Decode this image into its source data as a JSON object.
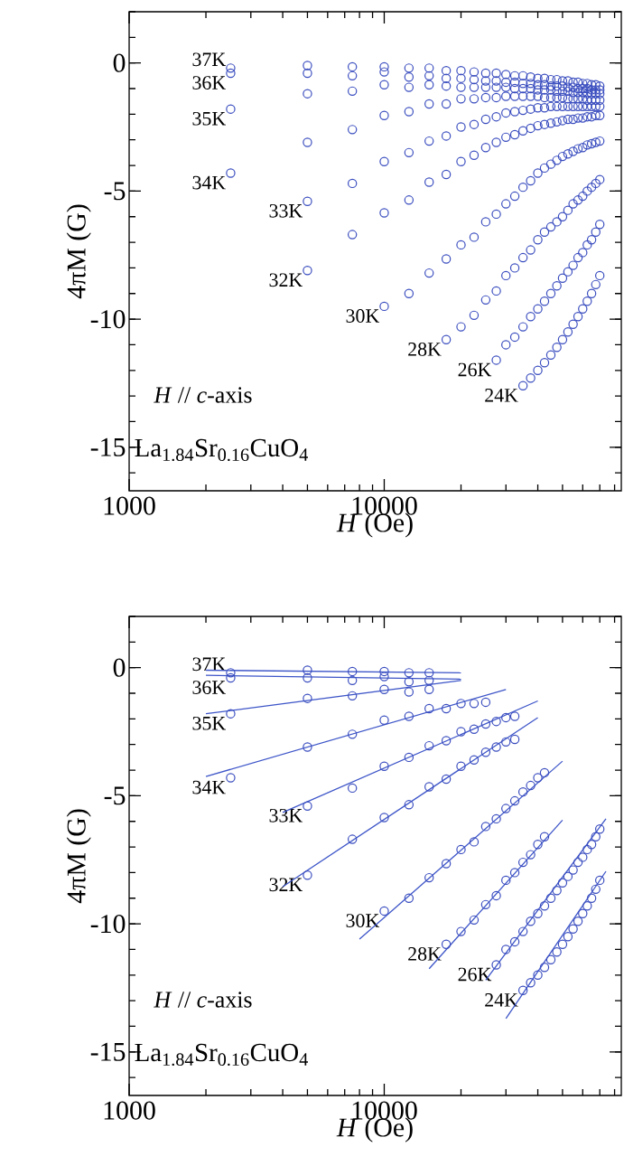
{
  "chart_data": [
    {
      "type": "scatter",
      "xlabel": "*H* (Oe)",
      "ylabel": "4πM (G)",
      "log": "x",
      "marker": "circle",
      "xlim": [
        1000,
        85000
      ],
      "ylim": [
        -16.7,
        2
      ],
      "xticks": [
        1000,
        10000
      ],
      "yticks": [
        0,
        -5,
        -10,
        -15
      ],
      "annotations": [
        "*H* // *c*-axis",
        "La$_{1.84}$Sr$_{0.16}$CuO$_{4}$"
      ],
      "x": [
        2500,
        5000,
        7500,
        10000,
        12500,
        15000,
        17500,
        20000,
        22500,
        25000,
        27500,
        30000,
        32500,
        35000,
        37500,
        40000,
        42500,
        45000,
        47500,
        50000,
        52500,
        55000,
        57500,
        60000,
        62500,
        65000,
        67500,
        70000
      ],
      "series": [
        {
          "name": "37K",
          "color": "#3a4dbf",
          "values": [
            -0.2,
            -0.1,
            -0.15,
            -0.15,
            -0.2,
            -0.2,
            -0.3,
            -0.3,
            -0.35,
            -0.4,
            -0.4,
            -0.45,
            -0.5,
            -0.5,
            -0.55,
            -0.6,
            -0.6,
            -0.65,
            -0.65,
            -0.7,
            -0.7,
            -0.75,
            -0.75,
            -0.8,
            -0.8,
            -0.85,
            -0.85,
            -0.9
          ]
        },
        {
          "name": "36K",
          "color": "#3a4dbf",
          "values": [
            -0.4,
            -0.4,
            -0.5,
            -0.35,
            -0.55,
            -0.5,
            -0.6,
            -0.6,
            -0.65,
            -0.7,
            -0.7,
            -0.75,
            -0.75,
            -0.8,
            -0.8,
            -0.85,
            -0.85,
            -0.9,
            -0.9,
            -0.9,
            -0.95,
            -0.95,
            -1.0,
            -1.0,
            -1.0,
            -1.05,
            -1.05,
            -1.05
          ]
        },
        {
          "name": "35K",
          "color": "#3a4dbf",
          "values": [
            -1.8,
            -1.2,
            -1.1,
            -0.85,
            -0.95,
            -0.85,
            -0.9,
            -0.95,
            -0.95,
            -0.95,
            -0.95,
            -0.95,
            -1.0,
            -1.0,
            -1.0,
            -1.05,
            -1.05,
            -1.05,
            -1.1,
            -1.1,
            -1.1,
            -1.15,
            -1.15,
            -1.15,
            -1.2,
            -1.2,
            -1.2,
            -1.2
          ]
        },
        {
          "name": "34K",
          "color": "#3a4dbf",
          "values": [
            -4.3,
            -3.1,
            -2.6,
            -2.05,
            -1.9,
            -1.6,
            -1.6,
            -1.4,
            -1.4,
            -1.35,
            -1.35,
            -1.3,
            -1.3,
            -1.3,
            -1.3,
            -1.3,
            -1.35,
            -1.35,
            -1.35,
            -1.35,
            -1.4,
            -1.4,
            -1.4,
            -1.4,
            -1.45,
            -1.45,
            -1.45,
            -1.45
          ]
        },
        {
          "name": "33K",
          "color": "#3a4dbf",
          "values": [
            null,
            -5.4,
            -4.7,
            -3.85,
            -3.5,
            -3.05,
            -2.85,
            -2.5,
            -2.4,
            -2.2,
            -2.1,
            -1.95,
            -1.9,
            -1.85,
            -1.8,
            -1.75,
            -1.75,
            -1.7,
            -1.7,
            -1.7,
            -1.7,
            -1.7,
            -1.7,
            -1.7,
            -1.7,
            -1.7,
            -1.7,
            -1.7
          ]
        },
        {
          "name": "32K",
          "color": "#3a4dbf",
          "values": [
            null,
            -8.1,
            -6.7,
            -5.85,
            -5.35,
            -4.65,
            -4.35,
            -3.85,
            -3.6,
            -3.3,
            -3.1,
            -2.9,
            -2.8,
            -2.65,
            -2.55,
            -2.45,
            -2.4,
            -2.35,
            -2.3,
            -2.25,
            -2.2,
            -2.2,
            -2.15,
            -2.15,
            -2.1,
            -2.1,
            -2.05,
            -2.05
          ]
        },
        {
          "name": "30K",
          "color": "#3a4dbf",
          "values": [
            null,
            null,
            null,
            -9.5,
            -9.0,
            -8.2,
            -7.65,
            -7.1,
            -6.8,
            -6.2,
            -5.9,
            -5.5,
            -5.2,
            -4.85,
            -4.6,
            -4.3,
            -4.1,
            -3.95,
            -3.8,
            -3.65,
            -3.55,
            -3.45,
            -3.35,
            -3.3,
            -3.2,
            -3.15,
            -3.1,
            -3.05
          ]
        },
        {
          "name": "28K",
          "color": "#3a4dbf",
          "values": [
            null,
            null,
            null,
            null,
            null,
            null,
            -10.8,
            -10.3,
            -9.85,
            -9.25,
            -8.9,
            -8.3,
            -8.0,
            -7.6,
            -7.3,
            -6.9,
            -6.6,
            -6.4,
            -6.2,
            -6.0,
            -5.75,
            -5.5,
            -5.35,
            -5.2,
            -5.0,
            -4.85,
            -4.7,
            -4.55
          ]
        },
        {
          "name": "26K",
          "color": "#3a4dbf",
          "values": [
            null,
            null,
            null,
            null,
            null,
            null,
            null,
            null,
            null,
            null,
            -11.6,
            -11.0,
            -10.7,
            -10.3,
            -9.9,
            -9.6,
            -9.3,
            -9.0,
            -8.7,
            -8.4,
            -8.15,
            -7.9,
            -7.6,
            -7.4,
            -7.1,
            -6.9,
            -6.6,
            -6.3
          ]
        },
        {
          "name": "24K",
          "color": "#3a4dbf",
          "values": [
            null,
            null,
            null,
            null,
            null,
            null,
            null,
            null,
            null,
            null,
            null,
            null,
            null,
            -12.6,
            -12.3,
            -12.0,
            -11.7,
            -11.4,
            -11.1,
            -10.8,
            -10.5,
            -10.2,
            -9.9,
            -9.6,
            -9.3,
            -9.0,
            -8.65,
            -8.3
          ]
        }
      ]
    },
    {
      "type": "scatter",
      "xlabel": "*H* (Oe)",
      "ylabel": "4πM (G)",
      "log": "x",
      "marker": "circle",
      "xlim": [
        1000,
        85000
      ],
      "ylim": [
        -16.7,
        2
      ],
      "xticks": [
        1000,
        10000
      ],
      "yticks": [
        0,
        -5,
        -10,
        -15
      ],
      "annotations": [
        "*H* // *c*-axis",
        "La$_{1.84}$Sr$_{0.16}$CuO$_{4}$"
      ],
      "x": [
        2500,
        5000,
        7500,
        10000,
        12500,
        15000,
        17500,
        20000,
        22500,
        25000,
        27500,
        30000,
        32500,
        35000,
        37500,
        40000,
        42500,
        45000,
        47500,
        50000,
        52500,
        55000,
        57500,
        60000,
        62500,
        65000,
        67500,
        70000
      ],
      "series": [
        {
          "name": "37K",
          "color": "#3a4dbf",
          "values": [
            -0.2,
            -0.1,
            -0.15,
            -0.15,
            -0.2,
            -0.2,
            null,
            null,
            null,
            null,
            null,
            null,
            null,
            null,
            null,
            null,
            null,
            null,
            null,
            null,
            null,
            null,
            null,
            null,
            null,
            null,
            null,
            null
          ]
        },
        {
          "type": "line",
          "marker": "none",
          "color": "#3d55c8",
          "x": [
            2000,
            20000
          ],
          "values": [
            -0.1,
            -0.2
          ]
        },
        {
          "name": "36K",
          "color": "#3a4dbf",
          "values": [
            -0.4,
            -0.4,
            -0.5,
            -0.35,
            -0.55,
            -0.5,
            null,
            null,
            null,
            null,
            null,
            null,
            null,
            null,
            null,
            null,
            null,
            null,
            null,
            null,
            null,
            null,
            null,
            null,
            null,
            null,
            null,
            null
          ]
        },
        {
          "type": "line",
          "marker": "none",
          "color": "#3d55c8",
          "x": [
            2000,
            20000
          ],
          "values": [
            -0.3,
            -0.45
          ]
        },
        {
          "name": "35K",
          "color": "#3a4dbf",
          "values": [
            -1.8,
            -1.2,
            -1.1,
            -0.85,
            -0.95,
            -0.85,
            null,
            null,
            null,
            null,
            null,
            null,
            null,
            null,
            null,
            null,
            null,
            null,
            null,
            null,
            null,
            null,
            null,
            null,
            null,
            null,
            null,
            null
          ]
        },
        {
          "type": "line",
          "marker": "none",
          "color": "#3d55c8",
          "x": [
            2000,
            20000
          ],
          "values": [
            -1.8,
            -0.5
          ]
        },
        {
          "name": "34K",
          "color": "#3a4dbf",
          "values": [
            -4.3,
            -3.1,
            -2.6,
            -2.05,
            -1.9,
            -1.6,
            -1.6,
            -1.4,
            -1.4,
            -1.35,
            null,
            null,
            null,
            null,
            null,
            null,
            null,
            null,
            null,
            null,
            null,
            null,
            null,
            null,
            null,
            null,
            null,
            null
          ]
        },
        {
          "type": "line",
          "marker": "none",
          "color": "#3d55c8",
          "x": [
            2000,
            30000
          ],
          "values": [
            -4.25,
            -0.85
          ]
        },
        {
          "name": "33K",
          "color": "#3a4dbf",
          "values": [
            null,
            -5.4,
            -4.7,
            -3.85,
            -3.5,
            -3.05,
            -2.85,
            -2.5,
            -2.4,
            -2.2,
            -2.1,
            -1.95,
            -1.9,
            null,
            null,
            null,
            null,
            null,
            null,
            null,
            null,
            null,
            null,
            null,
            null,
            null,
            null,
            null
          ]
        },
        {
          "type": "line",
          "marker": "none",
          "color": "#3d55c8",
          "x": [
            4000,
            40000
          ],
          "values": [
            -5.65,
            -1.3
          ]
        },
        {
          "name": "32K",
          "color": "#3a4dbf",
          "values": [
            null,
            -8.1,
            -6.7,
            -5.85,
            -5.35,
            -4.65,
            -4.35,
            -3.85,
            -3.6,
            -3.3,
            -3.1,
            -2.9,
            -2.8,
            null,
            null,
            null,
            null,
            null,
            null,
            null,
            null,
            null,
            null,
            null,
            null,
            null,
            null,
            null
          ]
        },
        {
          "type": "line",
          "marker": "none",
          "color": "#3d55c8",
          "x": [
            4000,
            40000
          ],
          "values": [
            -8.55,
            -1.95
          ]
        },
        {
          "name": "30K",
          "color": "#3a4dbf",
          "values": [
            null,
            null,
            null,
            -9.5,
            -9.0,
            -8.2,
            -7.65,
            -7.1,
            -6.8,
            -6.2,
            -5.9,
            -5.5,
            -5.2,
            -4.85,
            -4.6,
            -4.3,
            -4.1,
            null,
            null,
            null,
            null,
            null,
            null,
            null,
            null,
            null,
            null,
            null
          ]
        },
        {
          "type": "line",
          "marker": "none",
          "color": "#3d55c8",
          "x": [
            8000,
            50000
          ],
          "values": [
            -10.6,
            -3.65
          ]
        },
        {
          "name": "28K",
          "color": "#3a4dbf",
          "values": [
            null,
            null,
            null,
            null,
            null,
            null,
            -10.8,
            -10.3,
            -9.85,
            -9.25,
            -8.9,
            -8.3,
            -8.0,
            -7.6,
            -7.3,
            -6.9,
            -6.6,
            null,
            null,
            null,
            null,
            null,
            null,
            null,
            null,
            null,
            null,
            null
          ]
        },
        {
          "type": "line",
          "marker": "none",
          "color": "#3d55c8",
          "x": [
            15000,
            50000
          ],
          "values": [
            -11.75,
            -5.95
          ]
        },
        {
          "name": "26K",
          "color": "#3a4dbf",
          "values": [
            null,
            null,
            null,
            null,
            null,
            null,
            null,
            null,
            null,
            null,
            -11.6,
            -11.0,
            -10.7,
            -10.3,
            -9.9,
            -9.6,
            -9.3,
            -9.0,
            -8.7,
            -8.4,
            -8.15,
            -7.9,
            -7.6,
            -7.4,
            -7.1,
            -6.9,
            -6.6,
            -6.3
          ]
        },
        {
          "type": "line",
          "marker": "none",
          "color": "#3d55c8",
          "x": [
            25000,
            74000
          ],
          "values": [
            -12.2,
            -5.9
          ]
        },
        {
          "name": "24K",
          "color": "#3a4dbf",
          "values": [
            null,
            null,
            null,
            null,
            null,
            null,
            null,
            null,
            null,
            null,
            null,
            null,
            null,
            -12.6,
            -12.3,
            -12.0,
            -11.7,
            -11.4,
            -11.1,
            -10.8,
            -10.5,
            -10.2,
            -9.9,
            -9.6,
            -9.3,
            -9.0,
            -8.65,
            -8.3
          ]
        },
        {
          "type": "line",
          "marker": "none",
          "color": "#3d55c8",
          "x": [
            30000,
            74000
          ],
          "values": [
            -13.7,
            -7.95
          ]
        }
      ]
    }
  ]
}
